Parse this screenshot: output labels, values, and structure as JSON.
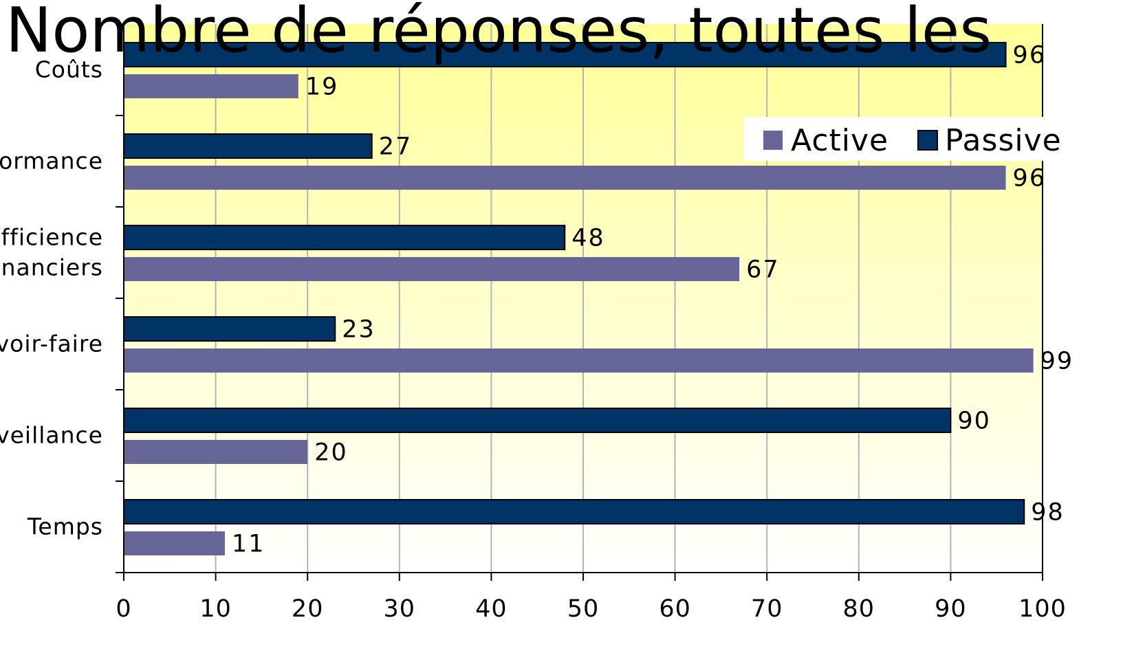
{
  "chart_data": {
    "type": "bar",
    "orientation": "horizontal",
    "title": "Nombre de réponses, toutes les",
    "categories_top_to_bottom": [
      "Coûts",
      "formance",
      "efficience financiers",
      "voir-faire",
      "rveillance",
      "Temps"
    ],
    "category_lines": [
      [
        "Coûts"
      ],
      [
        "formance"
      ],
      [
        "efficience",
        "financiers"
      ],
      [
        "voir-faire"
      ],
      [
        "rveillance"
      ],
      [
        "Temps"
      ]
    ],
    "series": [
      {
        "name": "Passive",
        "color": "#003366",
        "values": [
          96,
          27,
          48,
          23,
          90,
          98
        ]
      },
      {
        "name": "Active",
        "color": "#666699",
        "values": [
          19,
          96,
          67,
          99,
          20,
          11
        ]
      }
    ],
    "xlim": [
      0,
      100
    ],
    "xticks": [
      0,
      10,
      20,
      30,
      40,
      50,
      60,
      70,
      80,
      90,
      100
    ],
    "grid": "vertical",
    "legend_placement": "top-right",
    "legend_order": [
      "Active",
      "Passive"
    ],
    "plot_background": "gradient yellow to white",
    "gradient_top": "#ffff99",
    "gradient_bottom": "#ffffff"
  }
}
